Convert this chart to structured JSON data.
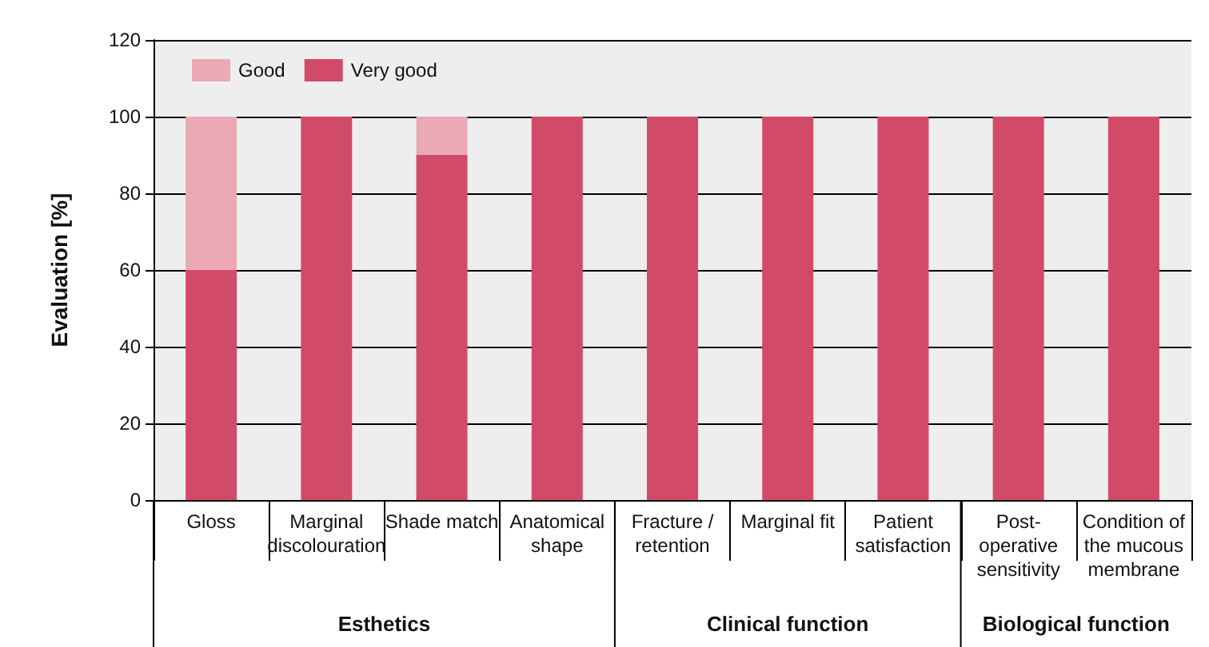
{
  "chart_data": {
    "type": "bar",
    "stacked": true,
    "ylabel": "Evaluation [%]",
    "categories": [
      "Gloss",
      "Marginal discolouration",
      "Shade match",
      "Anatomical shape",
      "Fracture / retention",
      "Marginal fit",
      "Patient satisfaction",
      "Post-operative sensitivity",
      "Condition of the mucous membrane"
    ],
    "series": [
      {
        "name": "Very good",
        "color": "#d14b68",
        "values": [
          60,
          100,
          90,
          100,
          100,
          100,
          100,
          100,
          100
        ]
      },
      {
        "name": "Good",
        "color": "#eaa9b5",
        "values": [
          40,
          0,
          10,
          0,
          0,
          0,
          0,
          0,
          0
        ]
      }
    ],
    "ylim": [
      0,
      120
    ],
    "yticks": [
      0,
      20,
      40,
      60,
      80,
      100,
      120
    ],
    "grid": "y",
    "legend": "top left",
    "annotations": [
      "Esthetics",
      "Clinical function",
      "Biological function"
    ]
  }
}
